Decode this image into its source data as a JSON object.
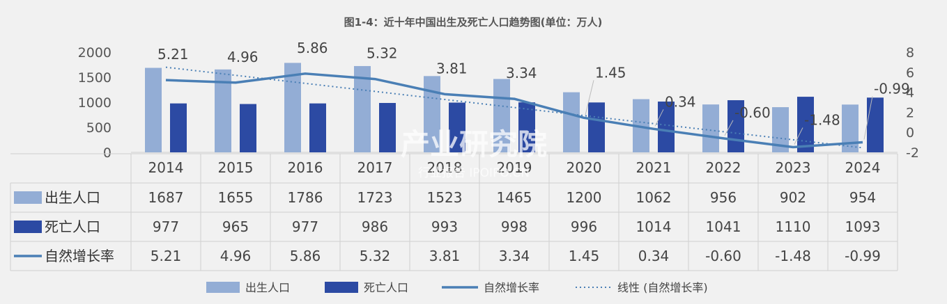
{
  "chart_data": {
    "type": "bar",
    "title": "图1-4：近十年中国出生及死亡人口趋势图(单位：万人)",
    "categories": [
      "2014",
      "2015",
      "2016",
      "2017",
      "2018",
      "2019",
      "2020",
      "2021",
      "2022",
      "2023",
      "2024"
    ],
    "series": [
      {
        "name": "出生人口",
        "type": "bar",
        "axis": "left",
        "color": "#93add5",
        "values": [
          1687,
          1655,
          1786,
          1723,
          1523,
          1465,
          1200,
          1062,
          956,
          902,
          954
        ]
      },
      {
        "name": "死亡人口",
        "type": "bar",
        "axis": "left",
        "color": "#2c4aa3",
        "values": [
          977,
          965,
          977,
          986,
          993,
          998,
          996,
          1014,
          1041,
          1110,
          1093
        ]
      },
      {
        "name": "自然增长率",
        "type": "line",
        "axis": "right",
        "color": "#4a7fb5",
        "values": [
          5.21,
          4.96,
          5.86,
          5.32,
          3.81,
          3.34,
          1.45,
          0.34,
          -0.6,
          -1.48,
          -0.99
        ],
        "labels": [
          "5.21",
          "4.96",
          "5.86",
          "5.32",
          "3.81",
          "3.34",
          "1.45",
          "0.34",
          "-0.60",
          "-1.48",
          "-0.99"
        ]
      }
    ],
    "trendline": {
      "name": "线性 (自然增长率)",
      "style": "dotted",
      "color": "#4a7fb5"
    },
    "y_left": {
      "ylim": [
        0,
        2000
      ],
      "ticks": [
        "0",
        "500",
        "1000",
        "1500",
        "2000"
      ]
    },
    "y_right": {
      "ylim": [
        -2,
        8
      ],
      "ticks": [
        "-2",
        "0",
        "2",
        "4",
        "6",
        "8"
      ]
    },
    "legend_position": "bottom",
    "grid": false,
    "data_table": true
  },
  "watermark": {
    "main": "产业研究院",
    "sub": "行业报告 IPOIPO.CN"
  }
}
